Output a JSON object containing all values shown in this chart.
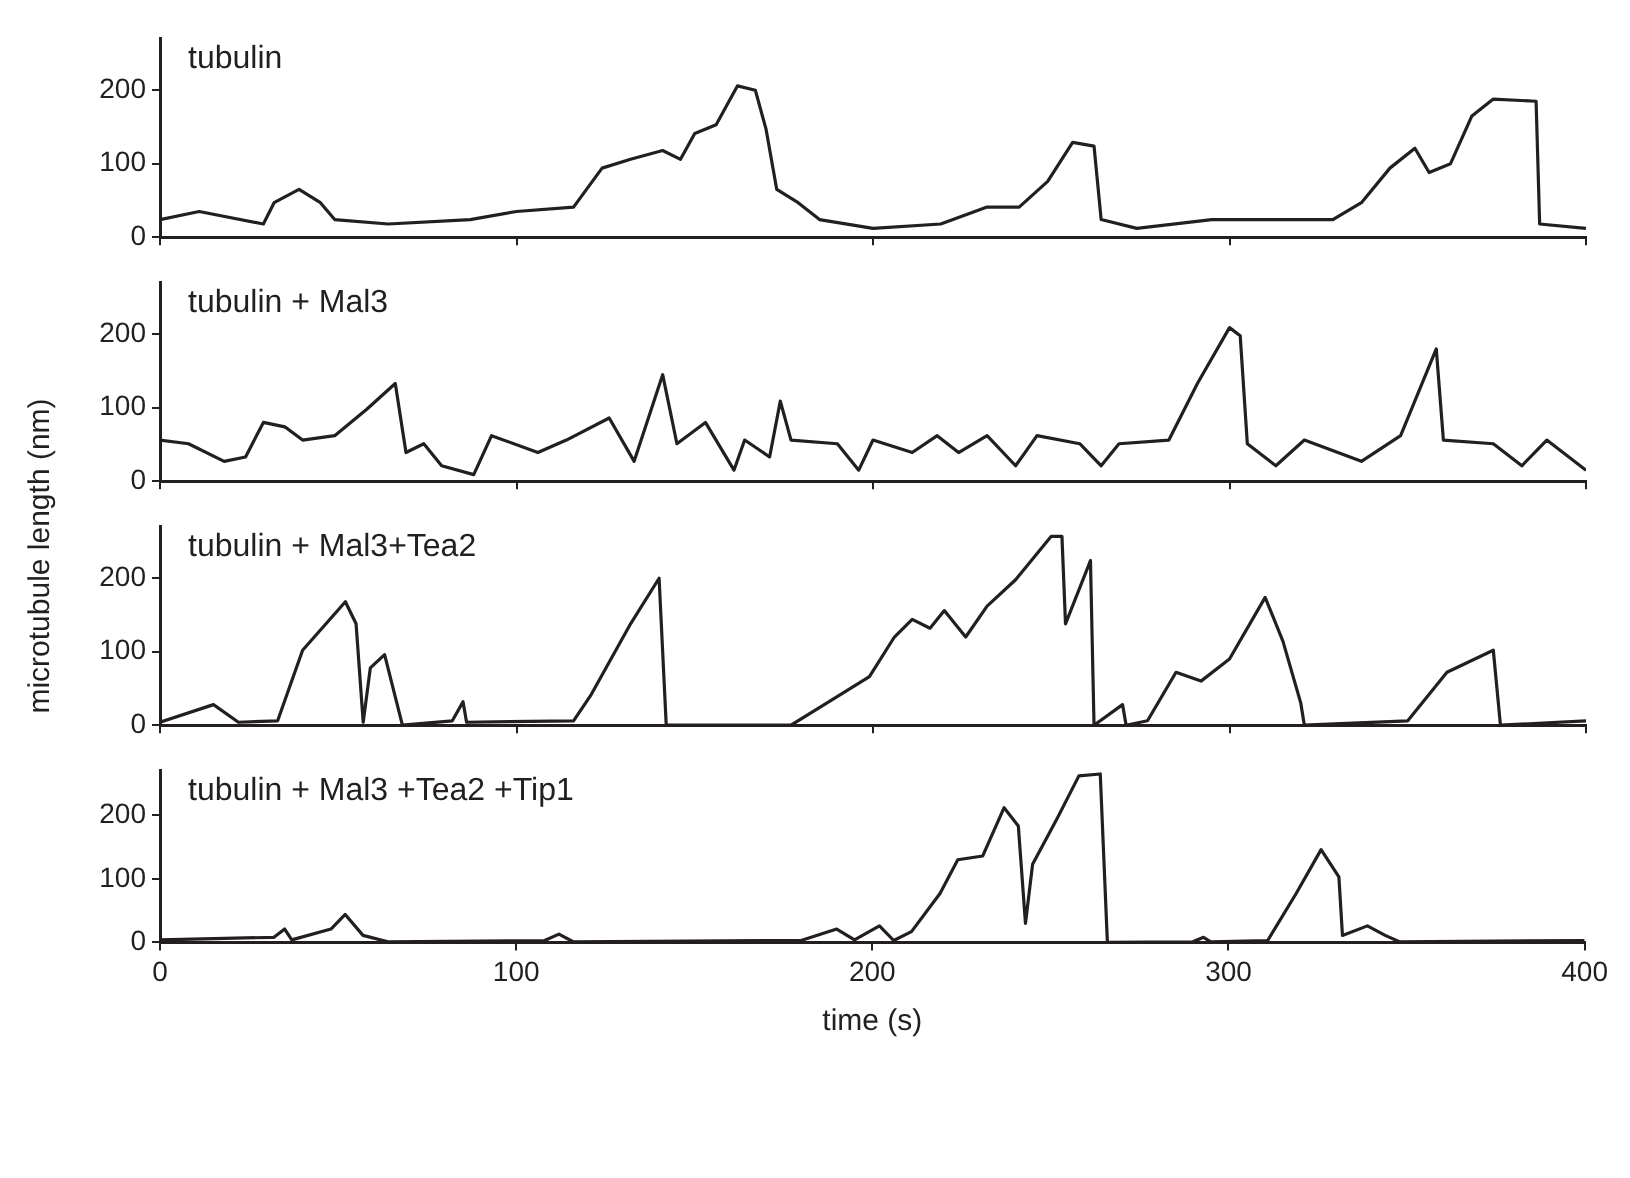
{
  "chart_data": [
    {
      "type": "line",
      "title": "tubulin",
      "ylabel": "microtubule length (nm)",
      "color": "#231f20",
      "xlim": [
        0,
        400
      ],
      "ylim": [
        0,
        270
      ],
      "xticks": [
        0,
        100,
        200,
        300,
        400
      ],
      "yticks": [
        0,
        100,
        200
      ],
      "tick_labels": "y",
      "grid": false,
      "legend": false,
      "x": [
        0,
        11,
        29,
        32,
        39,
        45,
        49,
        64,
        87,
        100,
        116,
        124,
        132,
        141,
        146,
        150,
        156,
        162,
        167,
        170,
        173,
        179,
        185,
        200,
        219,
        232,
        241,
        249,
        256,
        262,
        264,
        274,
        295,
        329,
        337,
        345,
        352,
        356,
        362,
        368,
        374,
        386,
        387,
        400
      ],
      "values": [
        24,
        35,
        18,
        47,
        65,
        47,
        24,
        18,
        24,
        35,
        41,
        94,
        106,
        118,
        106,
        141,
        153,
        206,
        200,
        147,
        65,
        47,
        24,
        12,
        18,
        41,
        41,
        76,
        129,
        124,
        24,
        12,
        24,
        24,
        47,
        94,
        121,
        88,
        100,
        165,
        188,
        185,
        18,
        12
      ]
    },
    {
      "type": "line",
      "title": "tubulin + Mal3",
      "color": "#231f20",
      "xlim": [
        0,
        400
      ],
      "ylim": [
        0,
        270
      ],
      "xticks": [
        0,
        100,
        200,
        300,
        400
      ],
      "yticks": [
        0,
        100,
        200
      ],
      "tick_labels": "y",
      "grid": false,
      "legend": false,
      "x": [
        0,
        8,
        18,
        24,
        29,
        35,
        40,
        49,
        58,
        66,
        69,
        74,
        79,
        88,
        93,
        106,
        114,
        126,
        133,
        141,
        145,
        153,
        161,
        164,
        171,
        174,
        177,
        190,
        196,
        200,
        211,
        218,
        224,
        232,
        240,
        246,
        258,
        264,
        269,
        283,
        291,
        300,
        303,
        305,
        313,
        321,
        337,
        348,
        358,
        360,
        374,
        382,
        389,
        400
      ],
      "values": [
        56,
        51,
        27,
        33,
        80,
        74,
        56,
        62,
        98,
        133,
        39,
        51,
        21,
        9,
        62,
        39,
        56,
        86,
        27,
        145,
        51,
        80,
        15,
        56,
        33,
        109,
        56,
        51,
        15,
        56,
        39,
        62,
        39,
        62,
        21,
        62,
        51,
        21,
        51,
        56,
        133,
        209,
        198,
        51,
        21,
        56,
        27,
        62,
        180,
        56,
        51,
        21,
        56,
        15
      ]
    },
    {
      "type": "line",
      "title": "tubulin + Mal3+Tea2",
      "color": "#231f20",
      "xlim": [
        0,
        400
      ],
      "ylim": [
        0,
        270
      ],
      "xticks": [
        0,
        100,
        200,
        300,
        400
      ],
      "yticks": [
        0,
        100,
        200
      ],
      "tick_labels": "y",
      "grid": false,
      "legend": false,
      "x": [
        0,
        15,
        22,
        33,
        40,
        52,
        55,
        57,
        59,
        63,
        68,
        82,
        85,
        86,
        116,
        121,
        132,
        140,
        142,
        177,
        187,
        199,
        206,
        211,
        216,
        220,
        226,
        232,
        240,
        250,
        253,
        254,
        261,
        262,
        270,
        271,
        277,
        285,
        292,
        300,
        310,
        315,
        320,
        321,
        350,
        361,
        374,
        376,
        400
      ],
      "values": [
        4,
        28,
        4,
        6,
        102,
        168,
        138,
        4,
        78,
        96,
        0,
        6,
        32,
        4,
        6,
        42,
        138,
        200,
        0,
        0,
        30,
        66,
        120,
        144,
        132,
        156,
        120,
        162,
        198,
        257,
        257,
        138,
        224,
        0,
        28,
        0,
        6,
        72,
        60,
        90,
        174,
        114,
        30,
        0,
        6,
        72,
        102,
        0,
        6
      ]
    },
    {
      "type": "line",
      "title": "tubulin + Mal3 +Tea2 +Tip1",
      "xlabel": "time (s)",
      "color": "#231f20",
      "xlim": [
        0,
        400
      ],
      "ylim": [
        0,
        270
      ],
      "xticks": [
        0,
        100,
        200,
        300,
        400
      ],
      "yticks": [
        0,
        100,
        200
      ],
      "grid": false,
      "legend": false,
      "x": [
        0,
        32,
        35,
        37,
        48,
        52,
        57,
        64,
        108,
        112,
        116,
        180,
        190,
        195,
        202,
        206,
        211,
        219,
        224,
        231,
        237,
        241,
        243,
        245,
        252,
        258,
        264,
        266,
        290,
        293,
        295,
        311,
        319,
        326,
        331,
        332,
        339,
        344,
        348,
        400
      ],
      "values": [
        4,
        8,
        21,
        4,
        21,
        44,
        11,
        1,
        3,
        13,
        1,
        3,
        21,
        4,
        26,
        3,
        17,
        77,
        130,
        136,
        212,
        183,
        30,
        123,
        196,
        262,
        265,
        0,
        1,
        8,
        1,
        3,
        77,
        146,
        103,
        11,
        26,
        11,
        1,
        3
      ]
    }
  ]
}
